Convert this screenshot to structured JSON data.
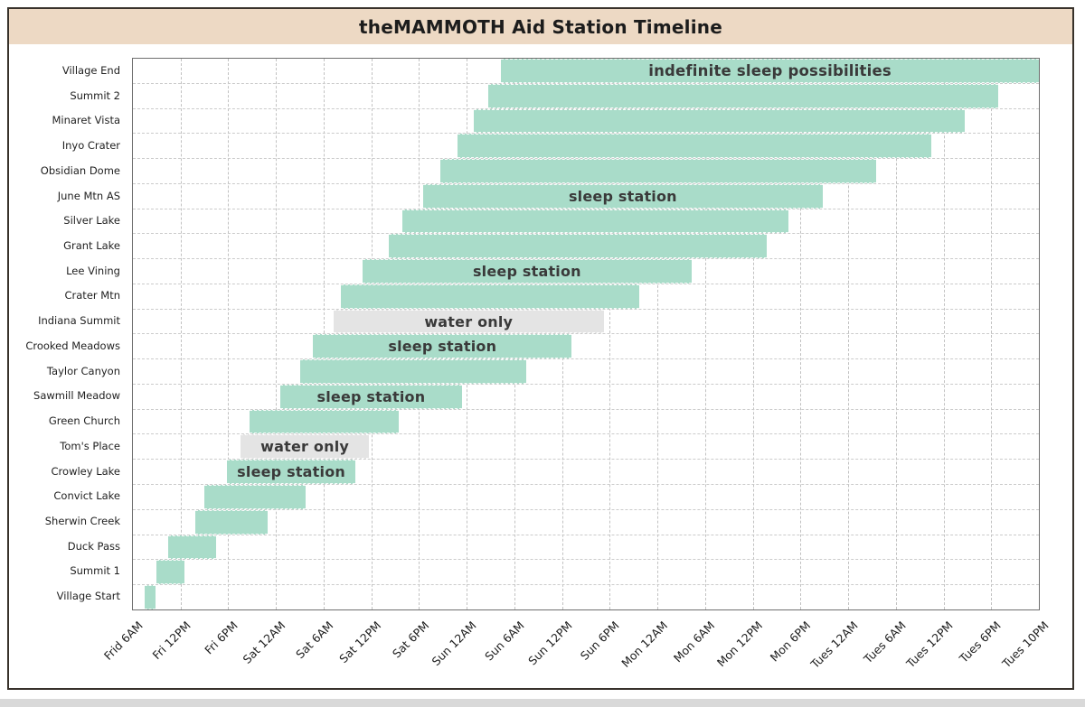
{
  "header": {
    "title": "theMAMMOTH Aid Station Timeline"
  },
  "chart_data": {
    "type": "bar",
    "subtype": "horizontal-gantt-timeline",
    "title": "theMAMMOTH Aid Station Timeline",
    "xlabel": "",
    "ylabel": "",
    "grid": true,
    "legend": "none",
    "x_tick_labels": [
      "Frid 6AM",
      "Fri 12PM",
      "Fri 6PM",
      "Sat 12AM",
      "Sat 6AM",
      "Sat 12PM",
      "Sat 6PM",
      "Sun 12AM",
      "Sun 6AM",
      "Sun 12PM",
      "Sun 6PM",
      "Mon 12AM",
      "Mon 6AM",
      "Mon 12PM",
      "Mon 6PM",
      "Tues 12AM",
      "Tues 6AM",
      "Tues 12PM",
      "Tues 6PM",
      "Tues 10PM"
    ],
    "x_axis_note": "20 evenly spaced ticks; each interval represents 6 hours except the final interval (Tues 6PM to Tues 10PM) which represents 4 hours. Bar positions below are in tick units (0 = Frid 6AM, 19 = Tues 10PM), estimated from the pixels.",
    "colors": {
      "bar_open": "#a9dcc9",
      "bar_water_only": "#e4e4e4",
      "annotation_text": "#3a3a3a",
      "header_bg": "#edd9c4",
      "frame_border": "#38322b"
    },
    "stations": [
      {
        "name": "Village End",
        "start_tick": 7.72,
        "end_tick": 19.0,
        "annotation": "indefinite sleep possibilities",
        "style": "open"
      },
      {
        "name": "Summit 2",
        "start_tick": 7.46,
        "end_tick": 18.14,
        "annotation": "",
        "style": "open"
      },
      {
        "name": "Minaret Vista",
        "start_tick": 7.15,
        "end_tick": 17.44,
        "annotation": "",
        "style": "open"
      },
      {
        "name": "Inyo Crater",
        "start_tick": 6.81,
        "end_tick": 16.74,
        "annotation": "",
        "style": "open"
      },
      {
        "name": "Obsidian Dome",
        "start_tick": 6.45,
        "end_tick": 15.58,
        "annotation": "",
        "style": "open"
      },
      {
        "name": "June Mtn AS",
        "start_tick": 6.09,
        "end_tick": 14.46,
        "annotation": "sleep station",
        "style": "open"
      },
      {
        "name": "Silver Lake",
        "start_tick": 5.65,
        "end_tick": 13.74,
        "annotation": "",
        "style": "open"
      },
      {
        "name": "Grant Lake",
        "start_tick": 5.37,
        "end_tick": 13.3,
        "annotation": "",
        "style": "open"
      },
      {
        "name": "Lee Vining",
        "start_tick": 4.82,
        "end_tick": 11.71,
        "annotation": "sleep station",
        "style": "open"
      },
      {
        "name": "Crater Mtn",
        "start_tick": 4.36,
        "end_tick": 10.61,
        "annotation": "",
        "style": "open"
      },
      {
        "name": "Indiana Summit",
        "start_tick": 4.21,
        "end_tick": 9.87,
        "annotation": "water only",
        "style": "water"
      },
      {
        "name": "Crooked Meadows",
        "start_tick": 3.78,
        "end_tick": 9.2,
        "annotation": "sleep station",
        "style": "open"
      },
      {
        "name": "Taylor Canyon",
        "start_tick": 3.51,
        "end_tick": 8.24,
        "annotation": "",
        "style": "open"
      },
      {
        "name": "Sawmill Meadow",
        "start_tick": 3.09,
        "end_tick": 6.9,
        "annotation": "sleep station",
        "style": "open"
      },
      {
        "name": "Green Church",
        "start_tick": 2.45,
        "end_tick": 5.58,
        "annotation": "",
        "style": "open"
      },
      {
        "name": "Tom's Place",
        "start_tick": 2.26,
        "end_tick": 4.95,
        "annotation": "water only",
        "style": "water"
      },
      {
        "name": "Crowley Lake",
        "start_tick": 1.97,
        "end_tick": 4.67,
        "annotation": "sleep station",
        "style": "open"
      },
      {
        "name": "Convict Lake",
        "start_tick": 1.5,
        "end_tick": 3.62,
        "annotation": "",
        "style": "open"
      },
      {
        "name": "Sherwin Creek",
        "start_tick": 1.31,
        "end_tick": 2.83,
        "annotation": "",
        "style": "open"
      },
      {
        "name": "Duck Pass",
        "start_tick": 0.74,
        "end_tick": 1.75,
        "annotation": "",
        "style": "open"
      },
      {
        "name": "Summit 1",
        "start_tick": 0.49,
        "end_tick": 1.08,
        "annotation": "",
        "style": "open"
      },
      {
        "name": "Village Start",
        "start_tick": 0.25,
        "end_tick": 0.47,
        "annotation": "",
        "style": "open"
      }
    ]
  }
}
